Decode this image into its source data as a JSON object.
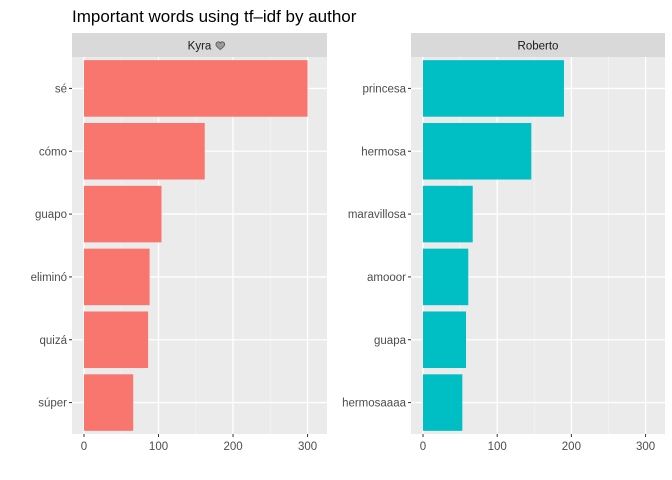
{
  "chart_data": {
    "type": "bar",
    "orientation": "horizontal",
    "title": "Important words using tf–idf by author",
    "xlabel": "",
    "ylabel": "",
    "xlim": [
      0,
      310
    ],
    "xticks": [
      0,
      100,
      200,
      300
    ],
    "grid": true,
    "panels": [
      {
        "name": "Kyra",
        "icon": "heart-icon",
        "color": "#F8766D",
        "categories": [
          "sé",
          "cómo",
          "guapo",
          "eliminó",
          "quizá",
          "súper"
        ],
        "values": [
          300,
          162,
          104,
          88,
          86,
          66
        ]
      },
      {
        "name": "Roberto",
        "icon": "",
        "color": "#00BFC4",
        "categories": [
          "princesa",
          "hermosa",
          "maravillosa",
          "amooor",
          "guapa",
          "hermosaaaa"
        ],
        "values": [
          190,
          146,
          67,
          61,
          58,
          53
        ]
      }
    ]
  }
}
